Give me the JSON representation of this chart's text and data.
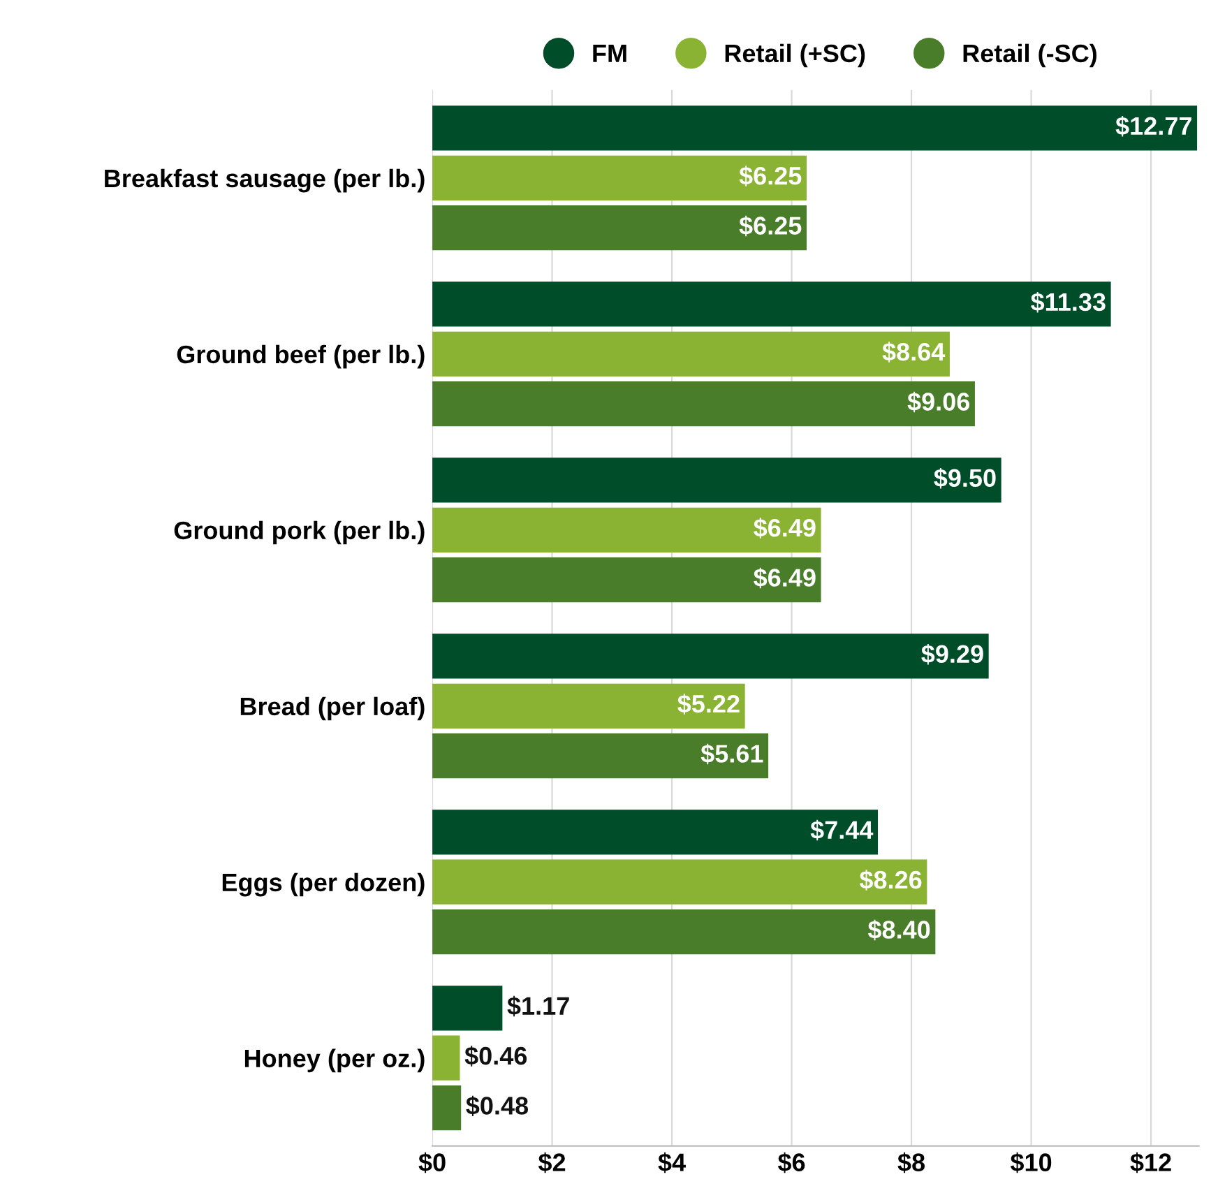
{
  "chart_data": {
    "type": "bar",
    "orientation": "horizontal",
    "categories": [
      "Breakfast sausage (per lb.)",
      "Ground beef (per lb.)",
      "Ground pork (per lb.)",
      "Bread (per loaf)",
      "Eggs (per dozen)",
      "Honey (per oz.)"
    ],
    "series": [
      {
        "name": "FM",
        "color": "#004d2a",
        "values": [
          12.77,
          11.33,
          9.5,
          9.29,
          7.44,
          1.17
        ],
        "value_labels": [
          "$12.77",
          "$11.33",
          "$9.50",
          "$9.29",
          "$7.44",
          "$1.17"
        ]
      },
      {
        "name": "Retail (+SC)",
        "color": "#8ab233",
        "values": [
          6.25,
          8.64,
          6.49,
          5.22,
          8.26,
          0.46
        ],
        "value_labels": [
          "$6.25",
          "$8.64",
          "$6.49",
          "$5.22",
          "$8.26",
          "$0.46"
        ]
      },
      {
        "name": "Retail (-SC)",
        "color": "#4a7d2a",
        "values": [
          6.25,
          9.06,
          6.49,
          5.61,
          8.4,
          0.48
        ],
        "value_labels": [
          "$6.25",
          "$9.06",
          "$6.49",
          "$5.61",
          "$8.40",
          "$0.48"
        ]
      }
    ],
    "xlim": [
      0,
      12.8
    ],
    "xticks": [
      {
        "value": 0,
        "label": "$0"
      },
      {
        "value": 2,
        "label": "$2"
      },
      {
        "value": 4,
        "label": "$4"
      },
      {
        "value": 6,
        "label": "$6"
      },
      {
        "value": 8,
        "label": "$8"
      },
      {
        "value": 10,
        "label": "$10"
      },
      {
        "value": 12,
        "label": "$12"
      }
    ],
    "grid": "x",
    "legend": "top"
  }
}
